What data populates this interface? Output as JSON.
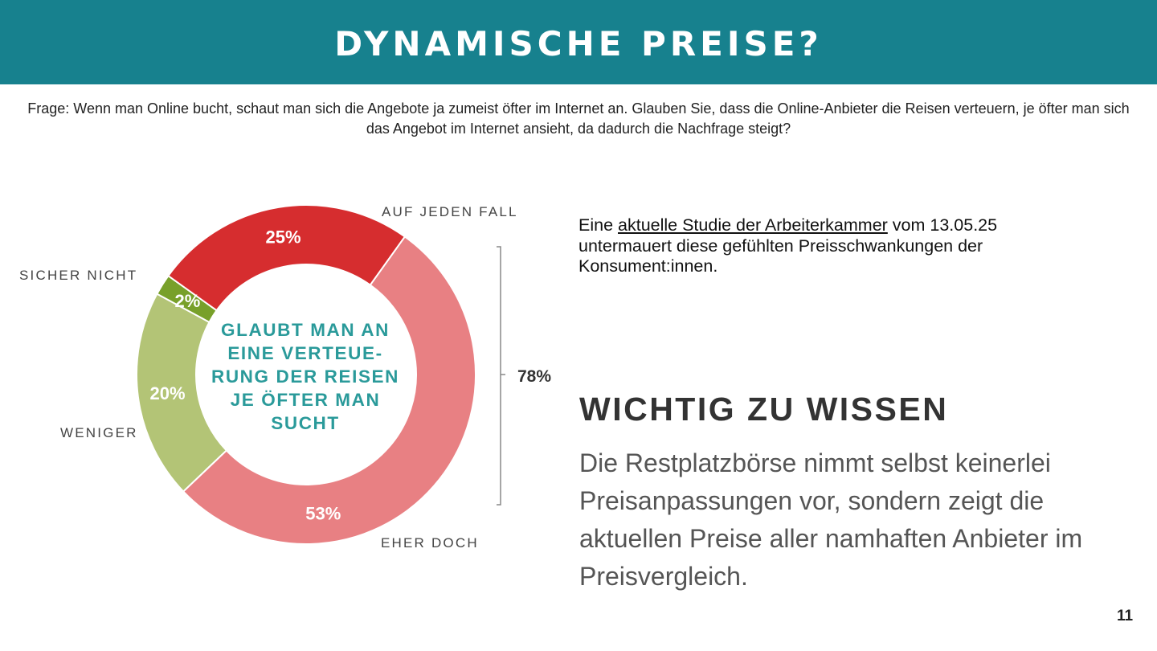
{
  "header": {
    "title": "DYNAMISCHE PREISE?"
  },
  "question": "Frage: Wenn man Online bucht, schaut man sich die Angebote ja zumeist öfter im Internet an. Glauben Sie, dass die Online-Anbieter die Reisen verteuern, je öfter man sich das Angebot im Internet ansieht, da dadurch die Nachfrage steigt?",
  "chart_data": {
    "type": "pie",
    "subtype": "donut",
    "center_label": "GLAUBT MAN AN EINE VERTEUE-RUNG DER REISEN JE ÖFTER MAN SUCHT",
    "categories": [
      "EHER DOCH",
      "WENIGER",
      "SICHER NICHT",
      "AUF JEDEN FALL"
    ],
    "values": [
      53,
      20,
      2,
      25
    ],
    "value_labels": [
      "53%",
      "20%",
      "2%",
      "25%"
    ],
    "colors": [
      "#e88083",
      "#b3c476",
      "#78a02a",
      "#d62d2f"
    ],
    "bracket": {
      "label": "78%",
      "covers": [
        "AUF JEDEN FALL",
        "EHER DOCH"
      ]
    },
    "center_text_color": "#2a9a9a"
  },
  "study": {
    "prefix": "Eine ",
    "link": "aktuelle Studie der Arbeiterkammer",
    "suffix": " vom 13.05.25 untermauert diese gefühlten Preisschwankungen der Konsument:innen."
  },
  "info": {
    "title": "WICHTIG ZU WISSEN",
    "body": "Die Restplatzbörse nimmt selbst keinerlei Preisanpassungen vor, sondern zeigt die aktuellen Preise aller namhaften Anbieter im Preisvergleich."
  },
  "page_number": "11",
  "colors": {
    "header": "#17818e"
  }
}
